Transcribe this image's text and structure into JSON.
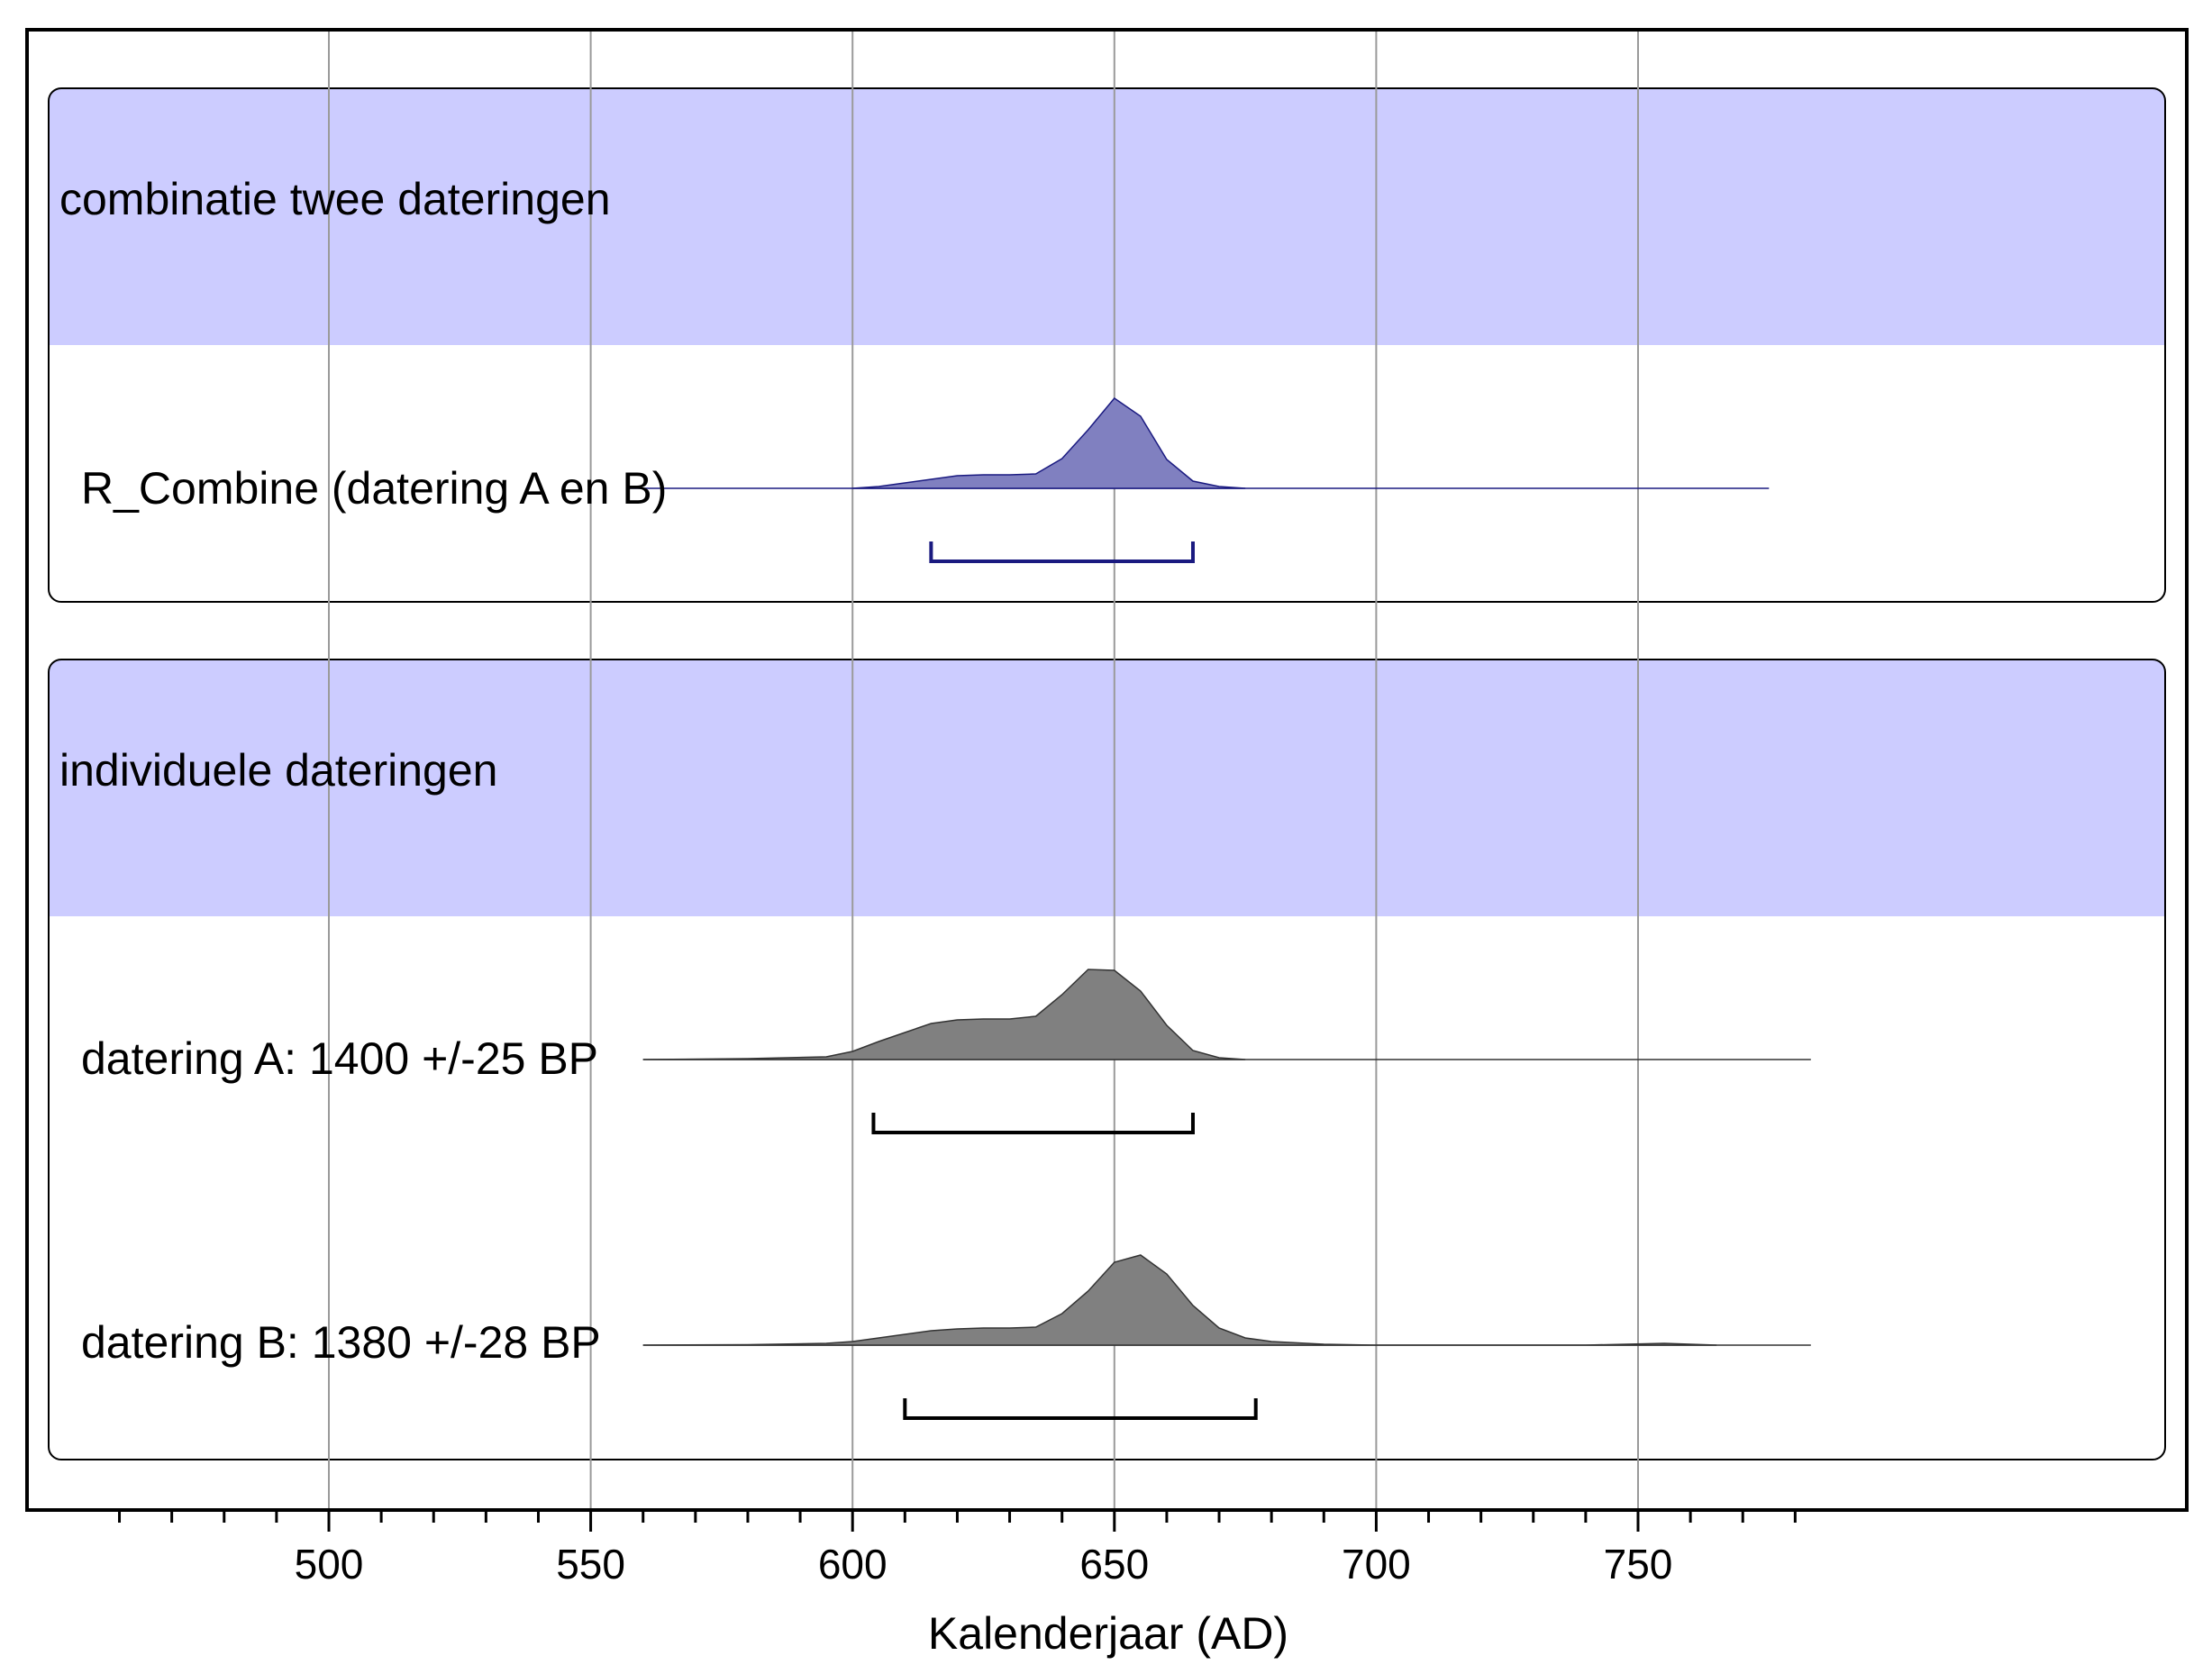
{
  "chart_data": {
    "type": "area",
    "title": "",
    "xlabel": "Kalenderjaar (AD)",
    "ylabel": "",
    "xlim": [
      453,
      783
    ],
    "x_ticks": [
      500,
      550,
      600,
      650,
      700,
      750
    ],
    "grid": true,
    "groups": [
      {
        "label": "combinatie twee dateringen",
        "color": "#ccccff",
        "series": [
          {
            "name": "R_Combine (datering A en B)",
            "fill": "#8080c0",
            "stroke": "#1a1a80",
            "baseline_range": [
              557,
              775
            ],
            "x": [
              600,
              605,
              610,
              615,
              620,
              625,
              630,
              635,
              640,
              645,
              650,
              655,
              660,
              665,
              670,
              675
            ],
            "y": [
              0.0,
              0.02,
              0.06,
              0.1,
              0.14,
              0.15,
              0.15,
              0.16,
              0.33,
              0.65,
              1.0,
              0.8,
              0.32,
              0.08,
              0.02,
              0.0
            ],
            "range": [
              615,
              665
            ],
            "range_color": "#1a1a80"
          }
        ]
      },
      {
        "label": "individuele dateringen",
        "color": "#ccccff",
        "series": [
          {
            "name": "datering A: 1400 +/-25 BP",
            "fill": "#808080",
            "stroke": "#333333",
            "baseline_range": [
              560,
              783
            ],
            "x": [
              560,
              580,
              595,
              600,
              605,
              610,
              615,
              620,
              625,
              630,
              635,
              640,
              645,
              650,
              655,
              660,
              665,
              670,
              675
            ],
            "y": [
              0.0,
              0.01,
              0.03,
              0.09,
              0.2,
              0.3,
              0.4,
              0.44,
              0.45,
              0.45,
              0.48,
              0.72,
              1.0,
              0.99,
              0.76,
              0.38,
              0.1,
              0.02,
              0.0
            ],
            "range": [
              604,
              665
            ],
            "range_color": "#000000"
          },
          {
            "name": "datering B: 1380 +/-28 BP",
            "fill": "#808080",
            "stroke": "#333333",
            "baseline_range": [
              560,
              783
            ],
            "x": [
              560,
              580,
              595,
              600,
              605,
              610,
              615,
              620,
              625,
              630,
              635,
              640,
              645,
              650,
              655,
              660,
              665,
              670,
              675,
              680,
              690,
              700,
              740,
              755,
              765
            ],
            "y": [
              0.0,
              0.005,
              0.02,
              0.04,
              0.08,
              0.12,
              0.16,
              0.18,
              0.19,
              0.19,
              0.2,
              0.35,
              0.6,
              0.92,
              1.0,
              0.79,
              0.44,
              0.19,
              0.08,
              0.04,
              0.01,
              0.0,
              0.0,
              0.02,
              0.0
            ],
            "range": [
              610,
              677
            ],
            "range_color": "#000000"
          }
        ]
      }
    ]
  }
}
